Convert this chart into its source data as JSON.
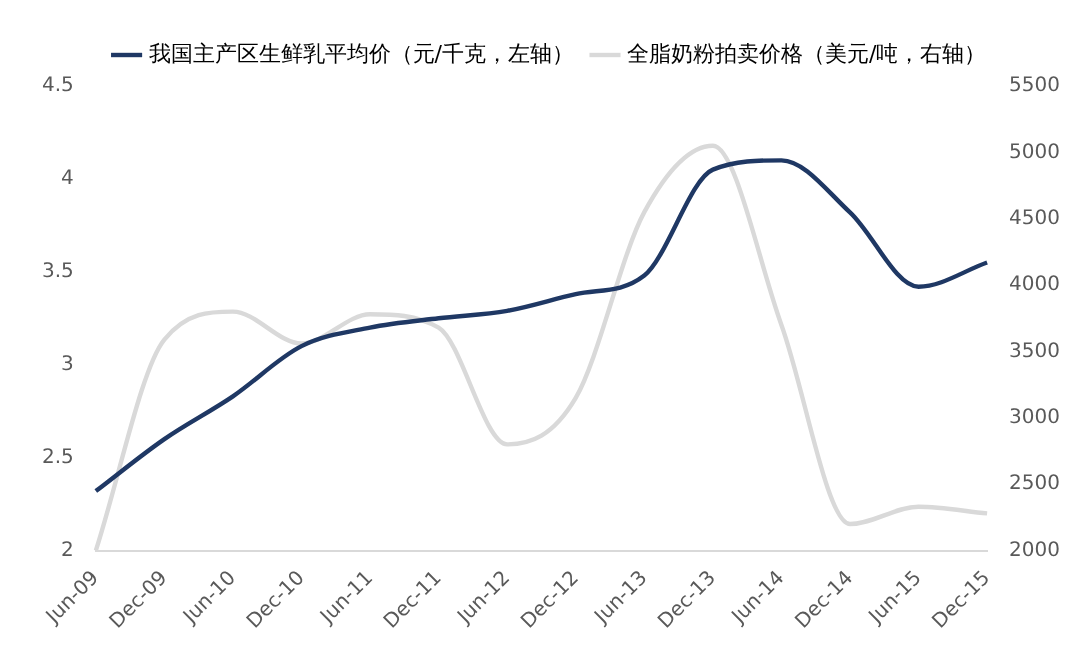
{
  "chart_data": {
    "type": "line",
    "categories": [
      "Jun-09",
      "Dec-09",
      "Jun-10",
      "Dec-10",
      "Jun-11",
      "Dec-11",
      "Jun-12",
      "Dec-12",
      "Jun-13",
      "Dec-13",
      "Jun-14",
      "Dec-14",
      "Jun-15",
      "Dec-15"
    ],
    "series": [
      {
        "name": "我国主产区生鲜乳平均价（元/千克，左轴）",
        "color": "#1f3864",
        "values": [
          2.32,
          2.6,
          2.83,
          3.1,
          3.2,
          3.25,
          3.29,
          3.38,
          3.48,
          4.05,
          4.1,
          3.82,
          3.42,
          3.55
        ]
      },
      {
        "name": "全脂奶粉拍卖价格（美元/吨，右轴）",
        "color": "#d9d9d9",
        "axis": "y2",
        "values": [
          2000,
          3590,
          3800,
          3560,
          3780,
          3680,
          2800,
          3150,
          4550,
          5050,
          3700,
          2200,
          2330,
          2280
        ]
      }
    ],
    "ylim": [
      2,
      4.5
    ],
    "yticks": [
      2,
      2.5,
      3,
      3.5,
      4,
      4.5
    ],
    "y2lim": [
      2000,
      5500
    ],
    "y2ticks": [
      2000,
      2500,
      3000,
      3500,
      4000,
      4500,
      5000,
      5500
    ],
    "grid": false,
    "legend": "top",
    "marker": "none",
    "line_style": "solid"
  }
}
